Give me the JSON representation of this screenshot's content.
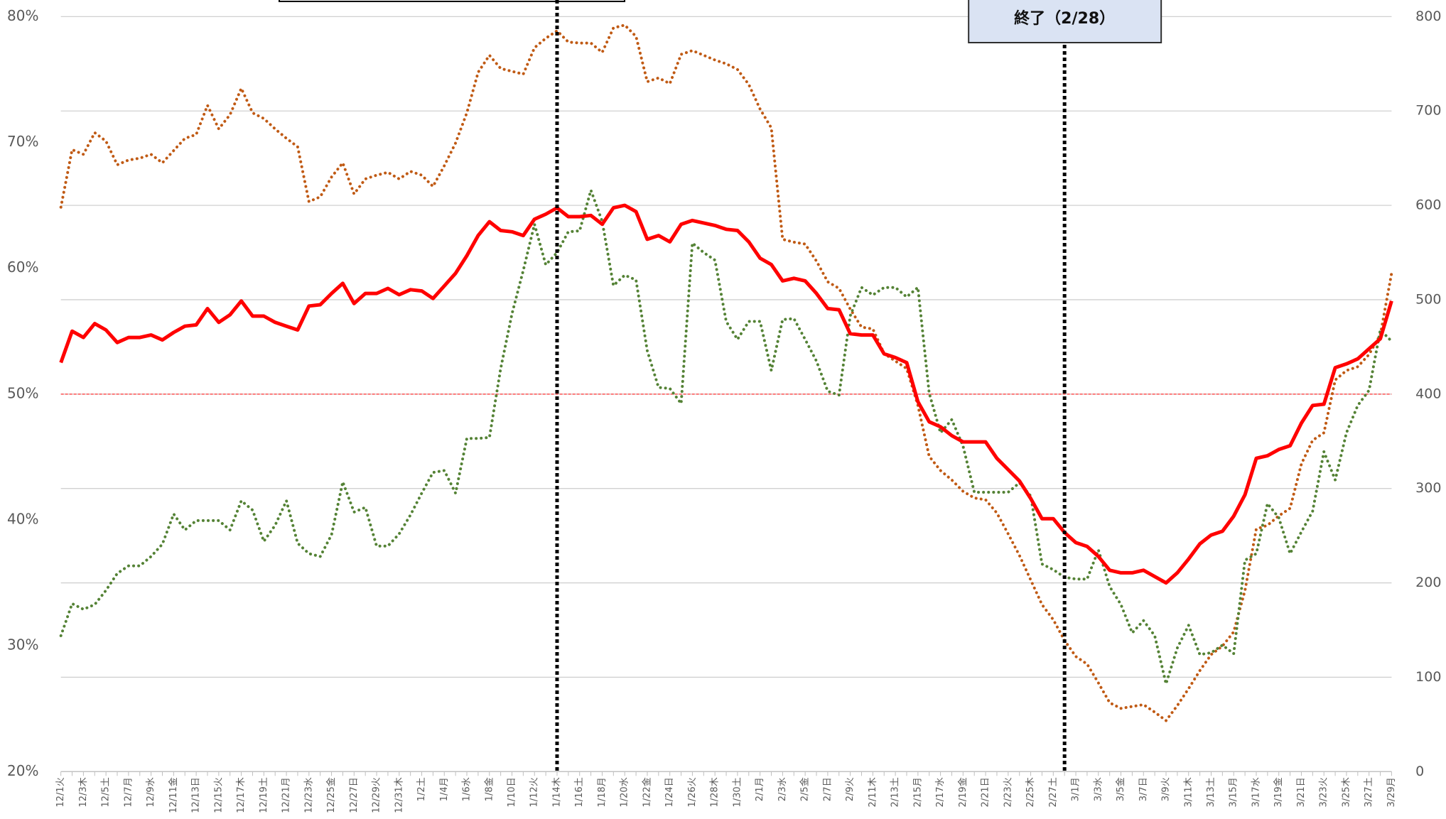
{
  "chart_data": {
    "type": "line",
    "categories": [
      "12/1火",
      null,
      "12/3木",
      null,
      "12/5土",
      null,
      "12/7月",
      null,
      "12/9水",
      null,
      "12/11金",
      null,
      "12/13日",
      null,
      "12/15火",
      null,
      "12/17木",
      null,
      "12/19土",
      null,
      "12/21月",
      null,
      "12/23水",
      null,
      "12/25金",
      null,
      "12/27日",
      null,
      "12/29火",
      null,
      "12/31木",
      null,
      "1/2土",
      null,
      "1/4月",
      null,
      "1/6水",
      null,
      "1/8金",
      null,
      "1/10日",
      null,
      "1/12火",
      null,
      "1/14木",
      null,
      "1/16土",
      null,
      "1/18月",
      null,
      "1/20水",
      null,
      "1/22金",
      null,
      "1/24日",
      null,
      "1/26火",
      null,
      "1/28木",
      null,
      "1/30土",
      null,
      "2/1月",
      null,
      "2/3水",
      null,
      "2/5金",
      null,
      "2/7日",
      null,
      "2/9火",
      null,
      "2/11木",
      null,
      "2/13土",
      null,
      "2/15月",
      null,
      "2/17水",
      null,
      "2/19金",
      null,
      "2/21日",
      null,
      "2/23火",
      null,
      "2/25木",
      null,
      "2/27土",
      null,
      "3/1月",
      null,
      "3/3水",
      null,
      "3/5金",
      null,
      "3/7日",
      null,
      "3/9火",
      null,
      "3/11木",
      null,
      "3/13土",
      null,
      "3/15月",
      null,
      "3/17水",
      null,
      "3/19金",
      null,
      "3/21日",
      null,
      "3/23火",
      null,
      "3/25木",
      null,
      "3/27土",
      null,
      "3/29月"
    ],
    "series": [
      {
        "color": "#ff0000",
        "style": "solid",
        "axis": "y",
        "values": [
          52.5,
          55.0,
          54.5,
          55.6,
          55.1,
          54.1,
          54.5,
          54.5,
          54.7,
          54.3,
          54.9,
          55.4,
          55.5,
          56.8,
          55.7,
          56.3,
          57.4,
          56.2,
          56.2,
          55.7,
          55.4,
          55.1,
          57.0,
          57.1,
          58.0,
          58.8,
          57.2,
          58.0,
          58.0,
          58.4,
          57.9,
          58.3,
          58.2,
          57.6,
          58.6,
          59.6,
          61.0,
          62.6,
          63.7,
          63.0,
          62.9,
          62.6,
          63.9,
          64.3,
          64.8,
          64.1,
          64.1,
          64.2,
          63.5,
          64.8,
          65.0,
          64.5,
          62.3,
          62.6,
          62.1,
          63.5,
          63.8,
          63.6,
          63.4,
          63.1,
          63.0,
          62.1,
          60.8,
          60.3,
          59.0,
          59.2,
          59.0,
          58.0,
          56.8,
          56.7,
          54.8,
          54.7,
          54.7,
          53.2,
          52.9,
          52.5,
          49.4,
          47.8,
          47.4,
          46.7,
          46.2,
          46.2,
          46.2,
          44.9,
          44.0,
          43.1,
          41.7,
          40.1,
          40.1,
          39.0,
          38.2,
          37.9,
          37.1,
          36.0,
          35.8,
          35.8,
          36.0,
          35.5,
          35.0,
          35.8,
          36.9,
          38.1,
          38.8,
          39.1,
          40.3,
          42.0,
          44.9,
          45.1,
          45.6,
          45.9,
          47.7,
          49.1,
          49.2,
          52.1,
          52.4,
          52.8,
          53.6,
          54.4,
          57.4
        ]
      },
      {
        "color": "#c05a14",
        "style": "dotted",
        "axis": "y2",
        "values": [
          598,
          659,
          654,
          677,
          668,
          643,
          648,
          650,
          654,
          645,
          658,
          671,
          675,
          706,
          681,
          696,
          724,
          698,
          692,
          681,
          671,
          662,
          604,
          609,
          630,
          645,
          612,
          628,
          632,
          635,
          628,
          636,
          632,
          620,
          642,
          666,
          698,
          741,
          759,
          745,
          742,
          739,
          767,
          777,
          785,
          773,
          772,
          772,
          762,
          788,
          791,
          779,
          731,
          735,
          729,
          760,
          764,
          759,
          754,
          750,
          744,
          728,
          702,
          682,
          564,
          561,
          559,
          541,
          519,
          512,
          490,
          471,
          469,
          443,
          435,
          427,
          388,
          334,
          319,
          309,
          297,
          290,
          288,
          274,
          252,
          229,
          203,
          177,
          161,
          139,
          122,
          114,
          94,
          73,
          67,
          69,
          71,
          63,
          54,
          70,
          88,
          107,
          124,
          133,
          148,
          192,
          257,
          261,
          271,
          279,
          326,
          351,
          359,
          415,
          425,
          429,
          442,
          463,
          528
        ]
      },
      {
        "color": "#548235",
        "style": "dotted",
        "axis": "y2",
        "values": [
          144,
          178,
          172,
          177,
          192,
          210,
          218,
          218,
          228,
          241,
          273,
          256,
          266,
          266,
          266,
          256,
          287,
          277,
          244,
          261,
          287,
          242,
          231,
          228,
          251,
          307,
          275,
          280,
          239,
          239,
          252,
          272,
          295,
          317,
          319,
          295,
          353,
          353,
          354,
          427,
          485,
          531,
          580,
          537,
          550,
          572,
          573,
          616,
          583,
          515,
          526,
          521,
          446,
          407,
          406,
          390,
          560,
          550,
          542,
          477,
          458,
          477,
          477,
          425,
          479,
          480,
          458,
          435,
          403,
          399,
          483,
          513,
          505,
          513,
          513,
          503,
          513,
          401,
          359,
          373,
          345,
          296,
          296,
          296,
          296,
          306,
          292,
          220,
          214,
          206,
          204,
          204,
          235,
          196,
          177,
          147,
          160,
          144,
          93,
          131,
          155,
          124,
          126,
          134,
          125,
          224,
          231,
          284,
          269,
          231,
          254,
          276,
          339,
          309,
          359,
          388,
          404,
          468,
          456
        ]
      }
    ],
    "ylim": [
      20,
      80
    ],
    "yticks": [
      {
        "value": 20,
        "label": "20%"
      },
      {
        "value": 30,
        "label": "30%"
      },
      {
        "value": 40,
        "label": "40%"
      },
      {
        "value": 50,
        "label": "50%"
      },
      {
        "value": 60,
        "label": "60%"
      },
      {
        "value": 70,
        "label": "70%"
      },
      {
        "value": 80,
        "label": "80%"
      }
    ],
    "y2lim": [
      0,
      800
    ],
    "y2ticks": [
      0,
      100,
      200,
      300,
      400,
      500,
      600,
      700,
      800
    ],
    "grid": true,
    "reference_line": 50,
    "vlines": [
      44,
      89
    ],
    "annotation": "終了（2/28）"
  }
}
